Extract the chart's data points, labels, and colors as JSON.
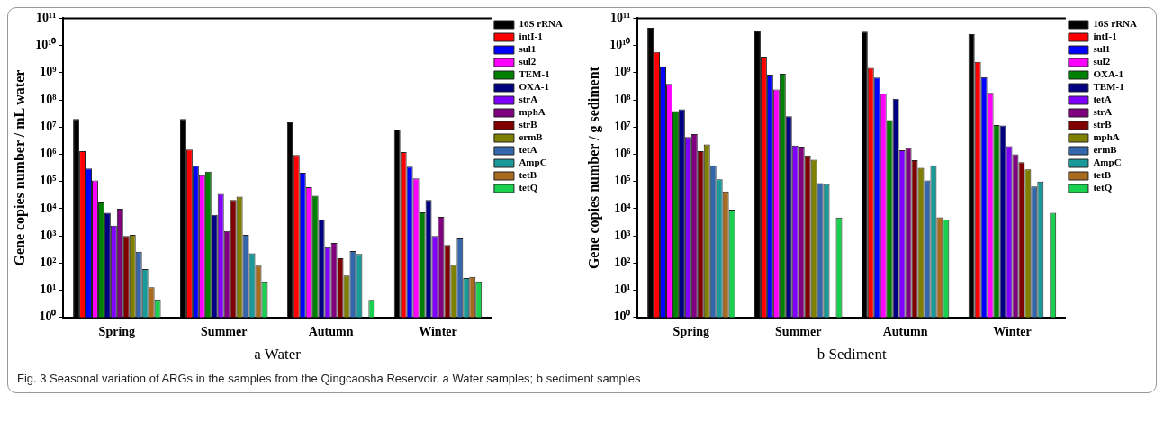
{
  "chart_data": [
    {
      "type": "bar",
      "xlabel": "a Water",
      "ylabel": "Gene copies number / mL water",
      "categories": [
        "Spring",
        "Summer",
        "Autumn",
        "Winter"
      ],
      "log": true,
      "grid": false,
      "legend": "right",
      "ylim": [
        1,
        100000000000
      ],
      "yticks": [
        {
          "value": 1,
          "label": "10⁰"
        },
        {
          "value": 10,
          "label": "10¹"
        },
        {
          "value": 100,
          "label": "10²"
        },
        {
          "value": 1000,
          "label": "10³"
        },
        {
          "value": 10000,
          "label": "10⁴"
        },
        {
          "value": 100000,
          "label": "10⁵"
        },
        {
          "value": 1000000,
          "label": "10⁶"
        },
        {
          "value": 10000000,
          "label": "10⁷"
        },
        {
          "value": 100000000,
          "label": "10⁸"
        },
        {
          "value": 1000000000,
          "label": "10⁹"
        },
        {
          "value": 10000000000,
          "label": "10¹⁰"
        },
        {
          "value": 100000000000,
          "label": "10¹¹"
        }
      ],
      "annotations": [
        "Fig. 3 Seasonal variation of ARGs in the samples from the Qingcaosha Reservoir. a Water samples; b sediment samples"
      ],
      "series": [
        {
          "name": "16S rRNA",
          "color": "#000000",
          "values": [
            20000000,
            20000000,
            15000000,
            8100000
          ]
        },
        {
          "name": "intI-1",
          "color": "#ff0000",
          "values": [
            1300000,
            1500000,
            950000,
            1200000
          ]
        },
        {
          "name": "sul1",
          "color": "#0000ff",
          "values": [
            300000,
            380000,
            210000,
            350000
          ]
        },
        {
          "name": "sul2",
          "color": "#ff00ff",
          "values": [
            110000,
            170000,
            62000,
            130000
          ]
        },
        {
          "name": "TEM-1",
          "color": "#008000",
          "values": [
            17000,
            230000,
            30000,
            7300
          ]
        },
        {
          "name": "OXA-1",
          "color": "#000080",
          "values": [
            7000,
            5900,
            4000,
            21000
          ]
        },
        {
          "name": "strA",
          "color": "#8000ff",
          "values": [
            2400,
            35000,
            380,
            1000
          ]
        },
        {
          "name": "mphA",
          "color": "#800080",
          "values": [
            10000,
            1500,
            550,
            5000
          ]
        },
        {
          "name": "strB",
          "color": "#800000",
          "values": [
            1000,
            21000,
            150,
            460
          ]
        },
        {
          "name": "ermB",
          "color": "#808000",
          "values": [
            1100,
            28000,
            35,
            85
          ]
        },
        {
          "name": "tetA",
          "color": "#3366aa",
          "values": [
            260,
            1100,
            275,
            810
          ]
        },
        {
          "name": "AmpC",
          "color": "#1a9999",
          "values": [
            60,
            230,
            215,
            28
          ]
        },
        {
          "name": "tetB",
          "color": "#a86b1e",
          "values": [
            13,
            81,
            null,
            31
          ]
        },
        {
          "name": "tetQ",
          "color": "#19d14f",
          "values": [
            4.6,
            21,
            4.4,
            21
          ]
        }
      ]
    },
    {
      "type": "bar",
      "xlabel": "b Sediment",
      "ylabel": "Gene copies number / g sediment",
      "categories": [
        "Spring",
        "Summer",
        "Autumn",
        "Winter"
      ],
      "log": true,
      "grid": false,
      "legend": "right",
      "ylim": [
        1,
        100000000000
      ],
      "yticks": [
        {
          "value": 1,
          "label": "10⁰"
        },
        {
          "value": 10,
          "label": "10¹"
        },
        {
          "value": 100,
          "label": "10²"
        },
        {
          "value": 1000,
          "label": "10³"
        },
        {
          "value": 10000,
          "label": "10⁴"
        },
        {
          "value": 100000,
          "label": "10⁵"
        },
        {
          "value": 1000000,
          "label": "10⁶"
        },
        {
          "value": 10000000,
          "label": "10⁷"
        },
        {
          "value": 100000000,
          "label": "10⁸"
        },
        {
          "value": 1000000000,
          "label": "10⁹"
        },
        {
          "value": 10000000000,
          "label": "10¹⁰"
        },
        {
          "value": 100000000000,
          "label": "10¹¹"
        }
      ],
      "series": [
        {
          "name": "16S rRNA",
          "color": "#000000",
          "values": [
            45000000000,
            33000000000,
            32000000000,
            26000000000
          ]
        },
        {
          "name": "intI-1",
          "color": "#ff0000",
          "values": [
            5800000000,
            3900000000,
            1500000000,
            2500000000
          ]
        },
        {
          "name": "sul1",
          "color": "#0000ff",
          "values": [
            1700000000,
            850000000,
            660000000,
            690000000
          ]
        },
        {
          "name": "sul2",
          "color": "#ff00ff",
          "values": [
            390000000,
            240000000,
            170000000,
            180000000
          ]
        },
        {
          "name": "OXA-1",
          "color": "#008000",
          "values": [
            39000000,
            910000000,
            18000000,
            12000000
          ]
        },
        {
          "name": "TEM-1",
          "color": "#000080",
          "values": [
            45000000,
            25000000,
            110000000,
            11500000
          ]
        },
        {
          "name": "tetA",
          "color": "#8000ff",
          "values": [
            4300000,
            2100000,
            1400000,
            2000000
          ]
        },
        {
          "name": "strA",
          "color": "#800080",
          "values": [
            5500000,
            1900000,
            1700000,
            1000000
          ]
        },
        {
          "name": "strB",
          "color": "#800000",
          "values": [
            1300000,
            910000,
            610000,
            510000
          ]
        },
        {
          "name": "mphA",
          "color": "#808000",
          "values": [
            2300000,
            630000,
            320000,
            280000
          ]
        },
        {
          "name": "ermB",
          "color": "#3366aa",
          "values": [
            390000,
            87000,
            110000,
            65000
          ]
        },
        {
          "name": "AmpC",
          "color": "#1a9999",
          "values": [
            120000,
            81000,
            390000,
            100000
          ]
        },
        {
          "name": "tetB",
          "color": "#a86b1e",
          "values": [
            43000,
            null,
            4800,
            null
          ]
        },
        {
          "name": "tetQ",
          "color": "#19d14f",
          "values": [
            9300,
            4700,
            4000,
            7000
          ]
        }
      ]
    }
  ]
}
